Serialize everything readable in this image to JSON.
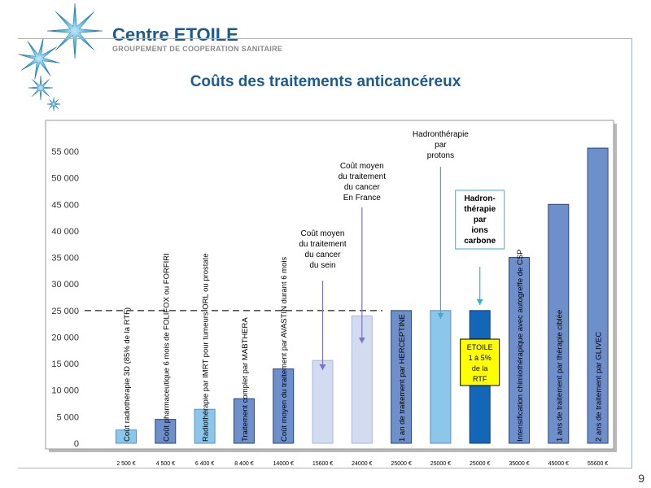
{
  "header": {
    "brand_name": "Centre ETOILE",
    "brand_subtitle": "GROUPEMENT DE COOPERATION SANITAIRE",
    "slide_title": "Coûts des traitements anticancéreux",
    "page_number": "9"
  },
  "colors": {
    "brand_blue": "#1f5a8a",
    "bar_dark": "#6f8fcb",
    "bar_light": "#d2dbef",
    "bar_mid": "#c2cfe8",
    "bar_cyan": "#8cc6ea",
    "bar_etoile": "#1467b8",
    "label_yellow": "#ffff00"
  },
  "chart_data": {
    "type": "bar",
    "ylim": [
      0,
      60000
    ],
    "yticks": [
      0,
      5000,
      10000,
      15000,
      20000,
      25000,
      30000,
      35000,
      40000,
      45000,
      50000,
      55000
    ],
    "ytick_labels": [
      "0",
      "5 000",
      "10 000",
      "15 000",
      "20 000",
      "25 000",
      "30 000",
      "35 000",
      "40 000",
      "45 000",
      "50 000",
      "55 000"
    ],
    "reference_line": 25000,
    "grid": false,
    "bars": [
      {
        "label": "Coût radiothérapie 3D (85% de la RTF)",
        "value": 2500,
        "value_label": "2 500 €",
        "style": "light"
      },
      {
        "label": "Coût pharmaceutique 6 mois de FOLIFOX ou FORFIRI",
        "value": 4500,
        "value_label": "4 500 €",
        "style": "dark"
      },
      {
        "label": "Radiothérapie par IMRT pour tumeurs ORL ou prostate",
        "value": 6400,
        "value_label": "6 400 €",
        "style": "light"
      },
      {
        "label": "Traitement complet par MABTHERA",
        "value": 8400,
        "value_label": "8 400 €",
        "style": "dark"
      },
      {
        "label": "Coût moyen du traitement par AVASTIN durant 6 mois",
        "value": 14000,
        "value_label": "14000 €",
        "style": "dark"
      },
      {
        "label": "",
        "value": 15600,
        "value_label": "15600 €",
        "style": "pale"
      },
      {
        "label": "",
        "value": 24000,
        "value_label": "24000 €",
        "style": "pale"
      },
      {
        "label": "1 an de traitement par HERCEPTINE",
        "value": 25000,
        "value_label": "25000 €",
        "style": "dark"
      },
      {
        "label": "",
        "value": 25000,
        "value_label": "25000 €",
        "style": "cyan"
      },
      {
        "label": "",
        "value": 25000,
        "value_label": "25000 €",
        "style": "etoile"
      },
      {
        "label": "Intensification chimiothérapique avec autogreffe de CSP",
        "value": 35000,
        "value_label": "35000 €",
        "style": "dark"
      },
      {
        "label": "1 ans de traitement par thérapie ciblée",
        "value": 45000,
        "value_label": "45000 €",
        "style": "dark"
      },
      {
        "label": "2 ans de traitement par GLIVEC",
        "value": 55600,
        "value_label": "55600 €",
        "style": "dark"
      }
    ],
    "annotations": [
      {
        "bar_index": 5,
        "lines": [
          "Coût moyen",
          "du traitement",
          "du cancer",
          "du sein"
        ]
      },
      {
        "bar_index": 6,
        "lines": [
          "Coût moyen",
          "du traitement",
          "du cancer",
          "En France"
        ]
      },
      {
        "bar_index": 8,
        "lines": [
          "Hadronthérapie",
          "par",
          "protons"
        ]
      },
      {
        "bar_index": 9,
        "lines": [
          "Hadron-",
          "thérapie",
          "par",
          "ions",
          "carbone"
        ],
        "boxed": true
      }
    ],
    "etoile_label": [
      "ETOILE",
      "1 à 5%",
      "de la",
      "RTF"
    ]
  }
}
